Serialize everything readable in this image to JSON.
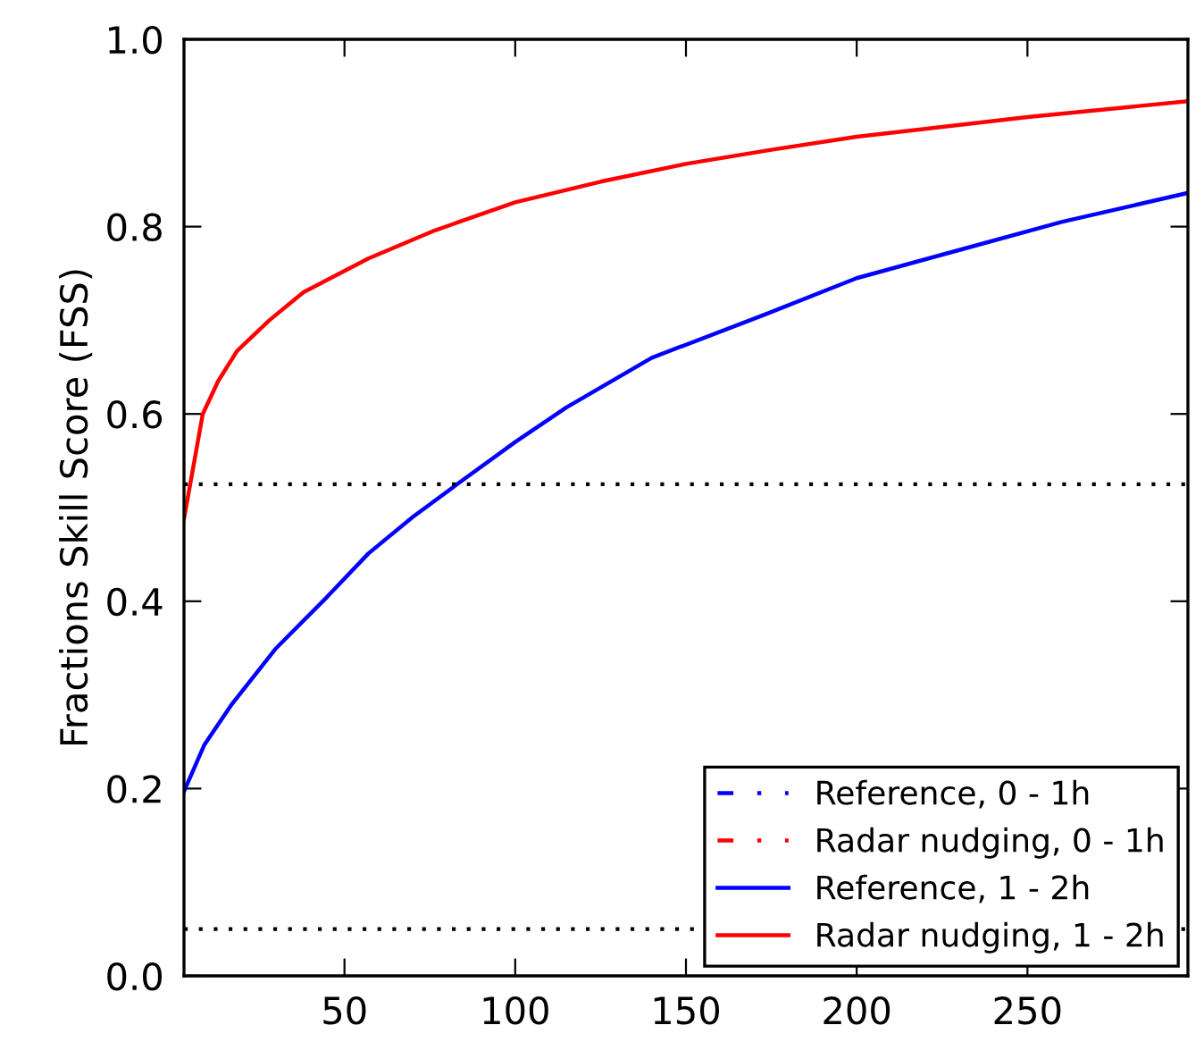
{
  "chart_data": {
    "type": "line",
    "ylabel": "Fractions Skill Score (FSS)",
    "xlim": [
      3,
      297
    ],
    "xticks": [
      50,
      100,
      150,
      200,
      250
    ],
    "ylim": [
      0,
      1
    ],
    "yticks": [
      {
        "value": 0,
        "label": "0.0"
      },
      {
        "value": 0.2,
        "label": "0.2"
      },
      {
        "value": 0.4,
        "label": "0.4"
      },
      {
        "value": 0.6,
        "label": "0.6"
      },
      {
        "value": 0.8,
        "label": "0.8"
      },
      {
        "value": 1,
        "label": "1.0"
      }
    ],
    "grid": false,
    "legend": "bottom right",
    "marker": "none",
    "ref_lines": [
      {
        "axis": "y",
        "value": 0.525,
        "color": "#000000",
        "line_style": "dotted"
      },
      {
        "axis": "y",
        "value": 0.05,
        "color": "#000000",
        "line_style": "dotted"
      }
    ],
    "series": [
      {
        "name": "Reference, 0 - 1h",
        "color": "#0000ff",
        "line_style": "dashed"
      },
      {
        "name": "Radar nudging, 0 - 1h",
        "color": "#ff0000",
        "line_style": "dashed"
      },
      {
        "name": "Reference, 1 - 2h",
        "color": "#0000ff",
        "line_style": "solid",
        "x": [
          3,
          9,
          17,
          30,
          45,
          57,
          70,
          83,
          100,
          115,
          140,
          173,
          200,
          231,
          260,
          297
        ],
        "values": [
          0.197,
          0.247,
          0.29,
          0.35,
          0.405,
          0.451,
          0.49,
          0.525,
          0.57,
          0.607,
          0.66,
          0.706,
          0.745,
          0.776,
          0.805,
          0.836
        ]
      },
      {
        "name": "Radar nudging, 1 - 2h",
        "color": "#ff0000",
        "line_style": "solid",
        "x": [
          3,
          8.5,
          13,
          18.5,
          28,
          38,
          57,
          76.5,
          100,
          125,
          150,
          175,
          200,
          250,
          297
        ],
        "values": [
          0.488,
          0.6,
          0.635,
          0.667,
          0.7,
          0.73,
          0.766,
          0.796,
          0.826,
          0.848,
          0.867,
          0.882,
          0.896,
          0.917,
          0.934
        ]
      }
    ]
  }
}
